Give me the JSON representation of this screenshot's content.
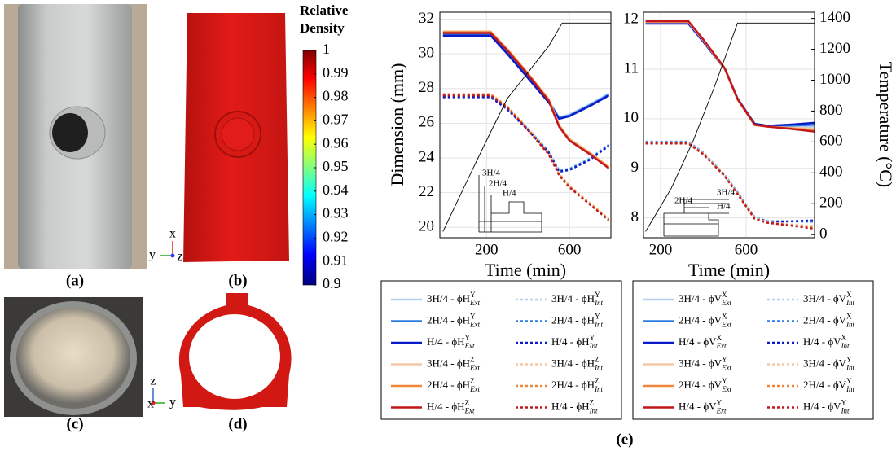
{
  "panel_labels": [
    "(a)",
    "(b)",
    "(c)",
    "(d)",
    "(e)"
  ],
  "colorbar": {
    "title_lines": [
      "Relative",
      "Density"
    ],
    "range": [
      0.9,
      1
    ],
    "ticks": [
      1,
      0.99,
      0.98,
      0.97,
      0.96,
      0.95,
      0.94,
      0.93,
      0.92,
      0.91,
      0.9
    ]
  },
  "axis_triads": [
    {
      "up": "x",
      "side": "y",
      "center": "z"
    },
    {
      "up": "z",
      "center": "x",
      "side": "y"
    }
  ],
  "chart_data": [
    {
      "type": "line",
      "xlabel": "Time (min)",
      "ylabel": "Dimension (mm)",
      "xlim": [
        -25,
        800
      ],
      "xticks": [
        200,
        600
      ],
      "ylim": [
        19.4,
        32.4
      ],
      "yticks": [
        20,
        22,
        24,
        26,
        28,
        30,
        32
      ],
      "y2lim": [
        -20,
        1440
      ],
      "grid": true,
      "annotations": [
        "3H/4",
        "2H/4",
        "H/4"
      ],
      "x": [
        -10,
        220,
        300,
        400,
        500,
        550,
        600,
        700,
        790
      ],
      "series": [
        {
          "name": "3H/4 - ϕH^Y_Ext",
          "color": "#b3d0f0",
          "style": "solid",
          "values": [
            31.15,
            31.15,
            30.1,
            28.7,
            27.3,
            26.35,
            26.5,
            27.1,
            27.7
          ]
        },
        {
          "name": "3H/4 - ϕH^Y_Int",
          "color": "#b3d0f0",
          "style": "dotted",
          "values": [
            27.6,
            27.6,
            26.9,
            25.7,
            24.4,
            23.3,
            23.4,
            24.0,
            24.8
          ]
        },
        {
          "name": "2H/4 - ϕH^Y_Ext",
          "color": "#2b7be0",
          "style": "solid",
          "values": [
            31.1,
            31.1,
            30.05,
            28.65,
            27.25,
            26.3,
            26.45,
            27.05,
            27.65
          ]
        },
        {
          "name": "2H/4 - ϕH^Y_Int",
          "color": "#2b7be0",
          "style": "dotted",
          "values": [
            27.55,
            27.55,
            26.85,
            25.65,
            24.35,
            23.25,
            23.35,
            23.95,
            24.75
          ]
        },
        {
          "name": "H/4 - ϕH^Y_Ext",
          "color": "#0a1ac8",
          "style": "solid",
          "values": [
            31.05,
            31.05,
            30.0,
            28.6,
            27.2,
            26.25,
            26.4,
            27.0,
            27.6
          ]
        },
        {
          "name": "H/4 - ϕH^Y_Int",
          "color": "#0a1ac8",
          "style": "dotted",
          "values": [
            27.5,
            27.5,
            26.8,
            25.6,
            24.3,
            23.2,
            23.3,
            23.9,
            24.7
          ]
        },
        {
          "name": "3H/4 - ϕH^Z_Ext",
          "color": "#f4c8a6",
          "style": "solid",
          "values": [
            31.3,
            31.3,
            30.3,
            28.9,
            27.4,
            25.9,
            25.1,
            24.3,
            23.5
          ]
        },
        {
          "name": "3H/4 - ϕH^Z_Int",
          "color": "#f4c8a6",
          "style": "dotted",
          "values": [
            27.7,
            27.7,
            27.0,
            25.7,
            24.3,
            23.1,
            22.4,
            21.4,
            20.5
          ]
        },
        {
          "name": "2H/4 - ϕH^Z_Ext",
          "color": "#ee873a",
          "style": "solid",
          "values": [
            31.25,
            31.25,
            30.25,
            28.85,
            27.35,
            25.85,
            25.05,
            24.25,
            23.45
          ]
        },
        {
          "name": "2H/4 - ϕH^Z_Int",
          "color": "#ee873a",
          "style": "dotted",
          "values": [
            27.65,
            27.65,
            26.95,
            25.65,
            24.25,
            23.05,
            22.35,
            21.35,
            20.45
          ]
        },
        {
          "name": "H/4 - ϕH^Z_Ext",
          "color": "#c0161c",
          "style": "solid",
          "values": [
            31.2,
            31.2,
            30.2,
            28.8,
            27.3,
            25.8,
            25.0,
            24.2,
            23.4
          ]
        },
        {
          "name": "H/4 - ϕH^Z_Int",
          "color": "#c0161c",
          "style": "dotted",
          "values": [
            27.6,
            27.6,
            26.9,
            25.6,
            24.2,
            23.0,
            22.3,
            21.3,
            20.4
          ]
        },
        {
          "color": "#000000",
          "style": "thin",
          "axis": "y2",
          "x": [
            -10,
            100,
            200,
            300,
            400,
            500,
            565,
            800
          ],
          "values": [
            20,
            330,
            610,
            880,
            1050,
            1220,
            1370,
            1370
          ]
        }
      ]
    },
    {
      "type": "line",
      "xlabel": "Time (min)",
      "y2label": "Temperature (°C)",
      "xlim": [
        120,
        920
      ],
      "xticks": [
        200,
        600
      ],
      "ylim": [
        7.6,
        12.15
      ],
      "yticks": [
        8,
        9,
        10,
        11,
        12
      ],
      "y2lim": [
        -20,
        1440
      ],
      "y2ticks": [
        0,
        200,
        400,
        600,
        800,
        1000,
        1200,
        1400
      ],
      "grid": true,
      "annotations": [
        "2H/4",
        "3H/4",
        "H/4"
      ],
      "x": [
        130,
        330,
        400,
        500,
        560,
        640,
        700,
        800,
        920
      ],
      "series": [
        {
          "name": "3H/4 - ϕV^X_Ext",
          "color": "#b3d0f0",
          "style": "solid",
          "values": [
            11.94,
            11.94,
            11.57,
            11.02,
            10.42,
            9.88,
            9.84,
            9.84,
            9.84
          ]
        },
        {
          "name": "3H/4 - ϕV^X_Int",
          "color": "#b3d0f0",
          "style": "dotted",
          "values": [
            9.54,
            9.54,
            9.32,
            8.87,
            8.52,
            8.02,
            7.94,
            7.93,
            7.91
          ]
        },
        {
          "name": "2H/4 - ϕV^X_Ext",
          "color": "#2b7be0",
          "style": "solid",
          "values": [
            11.93,
            11.93,
            11.56,
            11.01,
            10.41,
            9.89,
            9.85,
            9.86,
            9.88
          ]
        },
        {
          "name": "2H/4 - ϕV^X_Int",
          "color": "#2b7be0",
          "style": "dotted",
          "values": [
            9.53,
            9.53,
            9.31,
            8.86,
            8.51,
            8.01,
            7.93,
            7.93,
            7.93
          ]
        },
        {
          "name": "H/4 - ϕV^X_Ext",
          "color": "#0a1ac8",
          "style": "solid",
          "values": [
            11.92,
            11.92,
            11.55,
            11.0,
            10.4,
            9.9,
            9.86,
            9.88,
            9.92
          ]
        },
        {
          "name": "H/4 - ϕV^X_Int",
          "color": "#0a1ac8",
          "style": "dotted",
          "values": [
            9.52,
            9.52,
            9.3,
            8.85,
            8.5,
            8.0,
            7.92,
            7.93,
            7.95
          ]
        },
        {
          "name": "3H/4 - ϕV^Y_Ext",
          "color": "#f4c8a6",
          "style": "solid",
          "values": [
            11.95,
            11.95,
            11.58,
            11.0,
            10.38,
            9.87,
            9.84,
            9.82,
            9.8
          ]
        },
        {
          "name": "3H/4 - ϕV^Y_Int",
          "color": "#f4c8a6",
          "style": "dotted",
          "values": [
            9.52,
            9.52,
            9.3,
            8.86,
            8.5,
            8.0,
            7.91,
            7.87,
            7.84
          ]
        },
        {
          "name": "2H/4 - ϕV^Y_Ext",
          "color": "#ee873a",
          "style": "solid",
          "values": [
            11.96,
            11.96,
            11.59,
            11.01,
            10.39,
            9.87,
            9.84,
            9.81,
            9.77
          ]
        },
        {
          "name": "2H/4 - ϕV^Y_Int",
          "color": "#ee873a",
          "style": "dotted",
          "values": [
            9.51,
            9.51,
            9.29,
            8.85,
            8.49,
            7.99,
            7.9,
            7.86,
            7.81
          ]
        },
        {
          "name": "H/4 - ϕV^Y_Ext",
          "color": "#c0161c",
          "style": "solid",
          "values": [
            11.97,
            11.97,
            11.6,
            11.02,
            10.4,
            9.88,
            9.84,
            9.8,
            9.74
          ]
        },
        {
          "name": "H/4 - ϕV^Y_Int",
          "color": "#c0161c",
          "style": "dotted",
          "values": [
            9.5,
            9.5,
            9.28,
            8.84,
            8.48,
            7.98,
            7.9,
            7.85,
            7.78
          ]
        },
        {
          "color": "#000000",
          "style": "thin",
          "axis": "y2",
          "x": [
            130,
            250,
            350,
            450,
            560,
            920
          ],
          "values": [
            20,
            300,
            600,
            950,
            1370,
            1370
          ]
        }
      ]
    }
  ]
}
